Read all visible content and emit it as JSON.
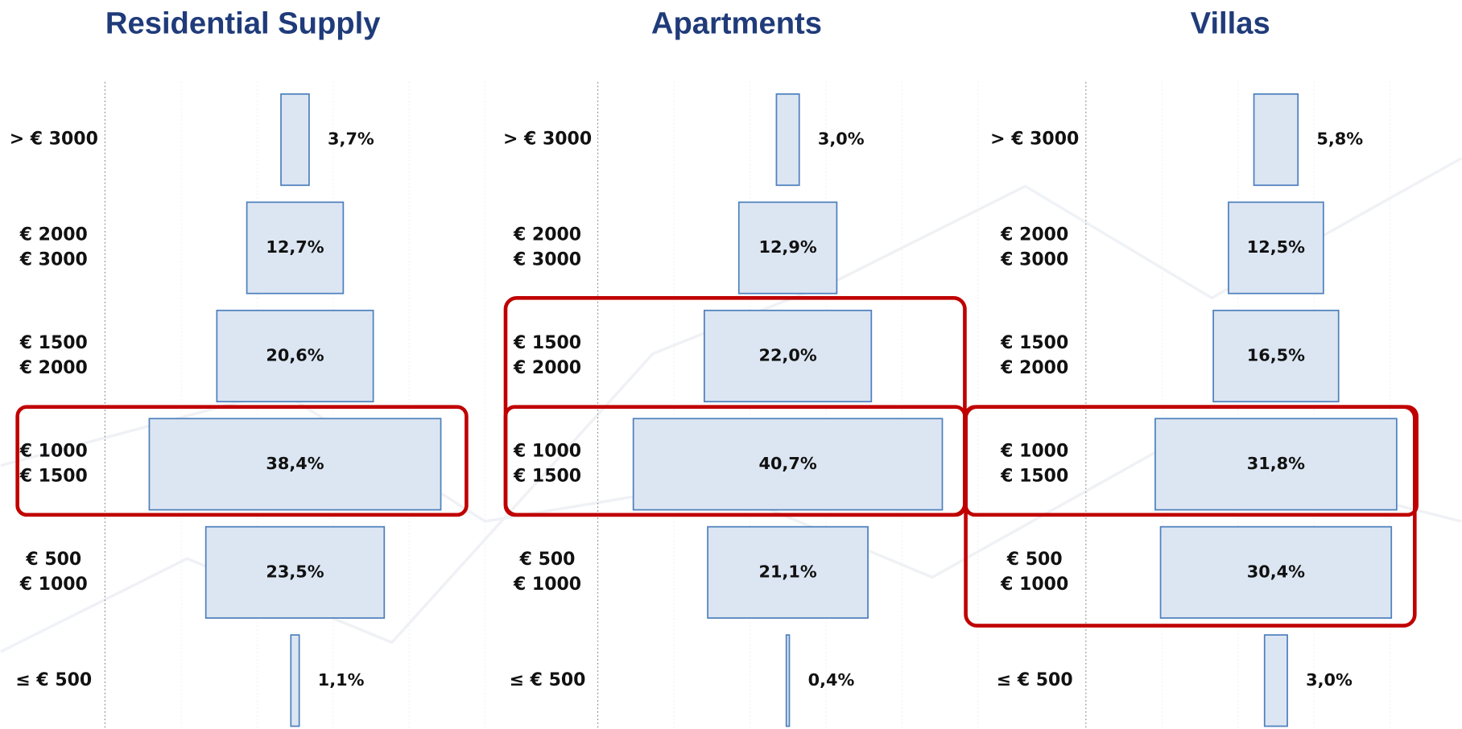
{
  "chart_data": [
    {
      "type": "funnel",
      "title": "Residential Supply",
      "categories": [
        [
          "> € 3000"
        ],
        [
          "€ 2000",
          "€ 3000"
        ],
        [
          "€ 1500",
          "€ 2000"
        ],
        [
          "€ 1000",
          "€ 1500"
        ],
        [
          "€ 500",
          "€ 1000"
        ],
        [
          "≤ € 500"
        ]
      ],
      "values": [
        3.7,
        12.7,
        20.6,
        38.4,
        23.5,
        1.1
      ],
      "value_labels": [
        "3,7%",
        "12,7%",
        "20,6%",
        "38,4%",
        "23,5%",
        "1,1%"
      ],
      "color": "#dce6f2"
    },
    {
      "type": "funnel",
      "title": "Apartments",
      "categories": [
        [
          "> € 3000"
        ],
        [
          "€ 2000",
          "€ 3000"
        ],
        [
          "€ 1500",
          "€ 2000"
        ],
        [
          "€ 1000",
          "€ 1500"
        ],
        [
          "€ 500",
          "€ 1000"
        ],
        [
          "≤ € 500"
        ]
      ],
      "values": [
        3.0,
        12.9,
        22.0,
        40.7,
        21.1,
        0.4
      ],
      "value_labels": [
        "3,0%",
        "12,9%",
        "22,0%",
        "40,7%",
        "21,1%",
        "0,4%"
      ],
      "color": "#dce6f2"
    },
    {
      "type": "funnel",
      "title": "Villas",
      "categories": [
        [
          "> € 3000"
        ],
        [
          "€ 2000",
          "€ 3000"
        ],
        [
          "€ 1500",
          "€ 2000"
        ],
        [
          "€ 1000",
          "€ 1500"
        ],
        [
          "€ 500",
          "€ 1000"
        ],
        [
          "≤ € 500"
        ]
      ],
      "values": [
        5.8,
        12.5,
        16.5,
        31.8,
        30.4,
        3.0
      ],
      "value_labels": [
        "5,8%",
        "12,5%",
        "16,5%",
        "31,8%",
        "30,4%",
        "3,0%"
      ],
      "color": "#dce6f2"
    }
  ]
}
